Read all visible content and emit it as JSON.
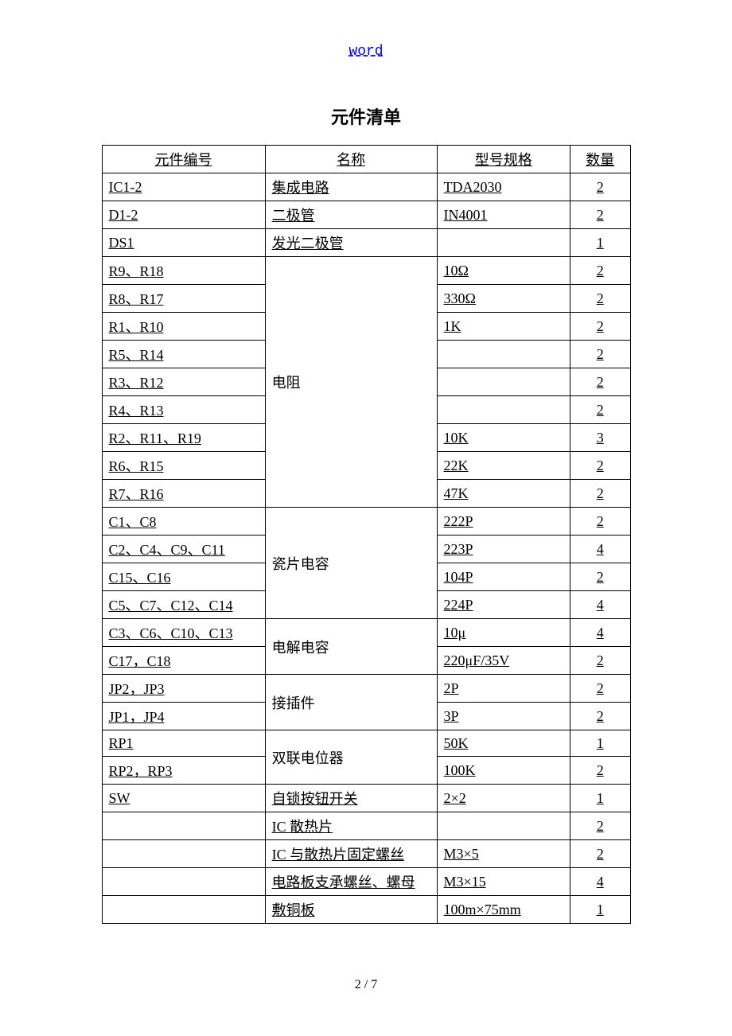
{
  "header_text": "word",
  "title": "元件清单",
  "footer": "2 / 7",
  "columns": {
    "id": "元件编号",
    "name": "名称",
    "spec": "型号规格",
    "qty": "数量"
  },
  "rows": [
    {
      "id": "IC1-2",
      "name": "集成电路",
      "spec": "TDA2030",
      "qty": "2",
      "name_rowspan": 1
    },
    {
      "id": "D1-2",
      "name": "二极管",
      "spec": "IN4001",
      "qty": "2",
      "name_rowspan": 1
    },
    {
      "id": "DS1",
      "name": "发光二极管",
      "spec": "",
      "qty": "1",
      "name_rowspan": 1
    },
    {
      "id": "R9、R18",
      "name": "电阻",
      "spec": "10Ω",
      "qty": "2",
      "name_rowspan": 9,
      "name_valign": "middle"
    },
    {
      "id": "R8、R17",
      "spec": "330Ω",
      "qty": "2"
    },
    {
      "id": "R1、R10",
      "spec": "1K",
      "qty": "2"
    },
    {
      "id": "R5、R14",
      "spec": "",
      "qty": "2"
    },
    {
      "id": "R3、R12",
      "spec": "",
      "qty": "2"
    },
    {
      "id": "R4、R13",
      "spec": "",
      "qty": "2"
    },
    {
      "id": "R2、R11、R19",
      "spec": "10K",
      "qty": "3"
    },
    {
      "id": "R6、R15",
      "spec": "22K",
      "qty": "2"
    },
    {
      "id": "R7、R16",
      "spec": "47K",
      "qty": "2"
    },
    {
      "id": "C1、C8",
      "name": "瓷片电容",
      "spec": "222P",
      "qty": "2",
      "name_rowspan": 4,
      "name_valign": "middle"
    },
    {
      "id": "C2、C4、C9、C11",
      "spec": "223P",
      "qty": "4"
    },
    {
      "id": "C15、C16",
      "spec": "104P",
      "qty": "2"
    },
    {
      "id": "C5、C7、C12、C14",
      "spec": "224P",
      "qty": "4"
    },
    {
      "id": "C3、C6、C10、C13",
      "name": "电解电容",
      "spec": "10μ",
      "qty": "4",
      "name_rowspan": 2,
      "name_valign": "middle"
    },
    {
      "id": "C17，C18",
      "spec": "220μF/35V",
      "qty": "2"
    },
    {
      "id": "JP2，JP3",
      "name": "接插件",
      "spec": "2P",
      "qty": "2",
      "name_rowspan": 2,
      "name_valign": "middle"
    },
    {
      "id": "JP1，JP4",
      "spec": "3P",
      "qty": "2"
    },
    {
      "id": "RP1",
      "name": "双联电位器",
      "spec": "50K",
      "qty": "1",
      "name_rowspan": 2,
      "name_valign": "middle"
    },
    {
      "id": "RP2，RP3",
      "spec": "100K",
      "qty": "2"
    },
    {
      "id": "SW",
      "name": "自锁按钮开关",
      "spec": "2×2",
      "qty": "1",
      "name_rowspan": 1
    },
    {
      "id": "",
      "name": "IC 散热片",
      "spec": "",
      "qty": "2",
      "name_rowspan": 1
    },
    {
      "id": "",
      "name": "IC 与散热片固定螺丝",
      "spec": "M3×5",
      "qty": "2",
      "name_rowspan": 1
    },
    {
      "id": "",
      "name": "电路板支承螺丝、螺母",
      "spec": "M3×15",
      "qty": "4",
      "name_rowspan": 1
    },
    {
      "id": "",
      "name": "敷铜板",
      "spec": "100m×75mm",
      "qty": "1",
      "name_rowspan": 1
    }
  ]
}
